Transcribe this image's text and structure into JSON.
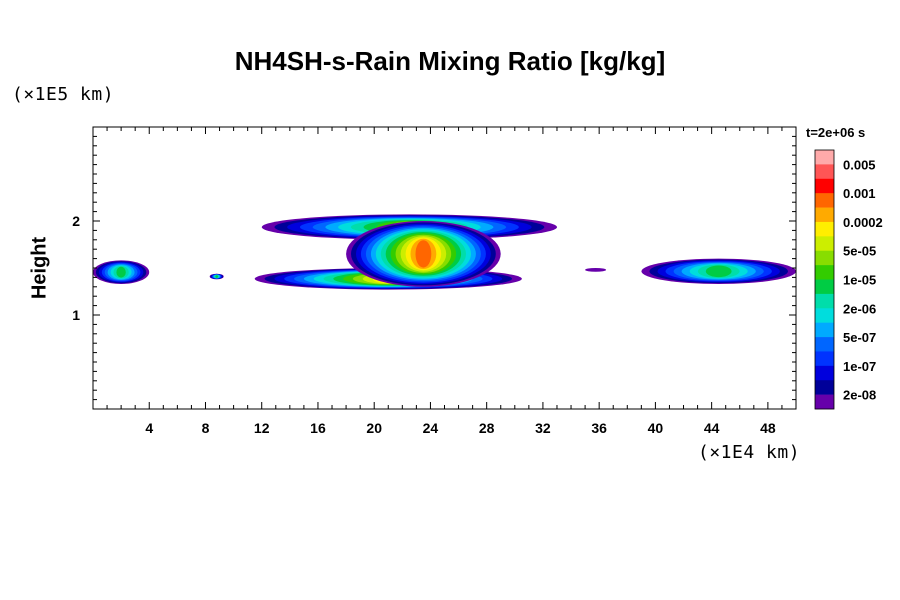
{
  "chart_data": {
    "type": "heatmap",
    "title": "NH4SH-s-Rain Mixing Ratio [kg/kg]",
    "xlabel": "",
    "ylabel": "Height",
    "x_unit": "(×1E4 km)",
    "y_unit": "(×1E5 km)",
    "time_label": "t=2e+06 s",
    "xlim": [
      0,
      50
    ],
    "ylim": [
      0,
      3
    ],
    "x_ticks": [
      4,
      8,
      12,
      16,
      20,
      24,
      28,
      32,
      36,
      40,
      44,
      48
    ],
    "y_ticks": [
      1,
      2
    ],
    "colorbar": {
      "labels": [
        "0.005",
        "0.001",
        "0.0002",
        "5e-05",
        "1e-05",
        "2e-06",
        "5e-07",
        "1e-07",
        "2e-08"
      ],
      "colors_top_to_bottom": [
        "#ffaaaa",
        "#ff5555",
        "#ff0000",
        "#ff6600",
        "#ffaa00",
        "#ffee00",
        "#ccee00",
        "#88dd00",
        "#33cc00",
        "#00cc44",
        "#00ddaa",
        "#00dddd",
        "#00aaff",
        "#0066ff",
        "#0033ff",
        "#0000dd",
        "#000099",
        "#6600aa"
      ]
    },
    "regions": [
      {
        "name": "central-lower-layer",
        "x_range": [
          11.5,
          30.5
        ],
        "y_range": [
          1.27,
          1.5
        ],
        "peak_level": "0.0002"
      },
      {
        "name": "central-anvil",
        "x_range": [
          12,
          33
        ],
        "y_range": [
          1.8,
          2.07
        ],
        "peak_level": "5e-05"
      },
      {
        "name": "central-column",
        "x_range": [
          18,
          29
        ],
        "y_range": [
          1.3,
          2.0
        ],
        "peak_level": "0.001"
      },
      {
        "name": "left-edge-patch",
        "x_range": [
          0,
          4
        ],
        "y_range": [
          1.33,
          1.58
        ],
        "peak_level": "1e-05"
      },
      {
        "name": "small-patch-8",
        "x_range": [
          8.3,
          9.3
        ],
        "y_range": [
          1.38,
          1.44
        ],
        "peak_level": "1e-05"
      },
      {
        "name": "right-layer",
        "x_range": [
          39,
          50
        ],
        "y_range": [
          1.33,
          1.6
        ],
        "peak_level": "1e-05"
      },
      {
        "name": "speck-36",
        "x_range": [
          35,
          36.5
        ],
        "y_range": [
          1.46,
          1.5
        ],
        "peak_level": "2e-08"
      }
    ]
  }
}
